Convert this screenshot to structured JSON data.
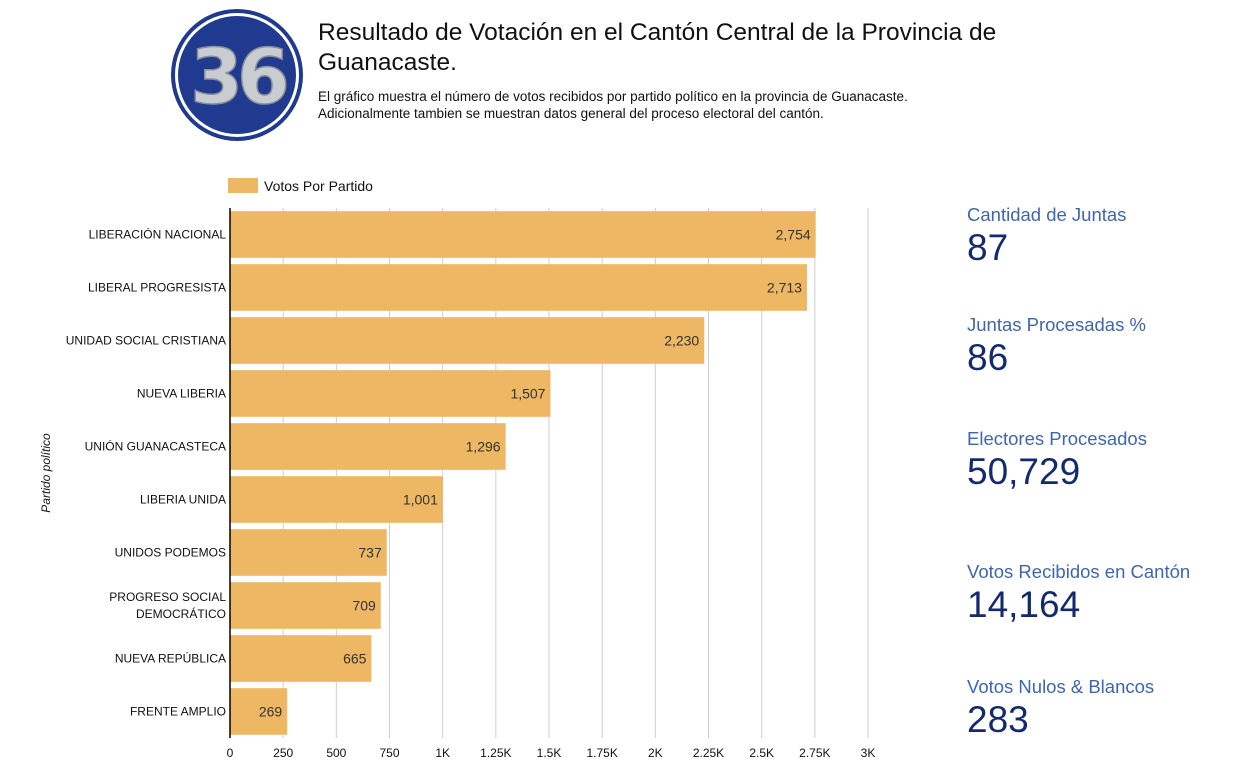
{
  "logo": {
    "text": "36",
    "colors": {
      "ring": "#ffffff",
      "disc": "#1f3a8f",
      "digits": "#c9cdd2"
    }
  },
  "header": {
    "title_line1": "Resultado de Votación en el Cantón Central de la Provincia de",
    "title_line2": "Guanacaste.",
    "subtitle_line1": "El gráfico muestra el número de votos recibidos por partido político en la provincia de Guanacaste.",
    "subtitle_line2": "Adicionalmente tambien se muestran datos general del proceso electoral del cantón."
  },
  "chart_data": {
    "type": "bar",
    "orientation": "horizontal",
    "ylabel": "Partido político",
    "categories": [
      [
        "LIBERACIÓN NACIONAL"
      ],
      [
        "LIBERAL PROGRESISTA"
      ],
      [
        "UNIDAD SOCIAL CRISTIANA"
      ],
      [
        "NUEVA LIBERIA"
      ],
      [
        "UNIÓN GUANACASTECA"
      ],
      [
        "LIBERIA UNIDA"
      ],
      [
        "UNIDOS PODEMOS"
      ],
      [
        "PROGRESO SOCIAL",
        "DEMOCRÁTICO"
      ],
      [
        "NUEVA REPÚBLICA"
      ],
      [
        "FRENTE AMPLIO"
      ]
    ],
    "series": [
      {
        "name": "Votos Por Partido",
        "color": "#eeb764",
        "values": [
          2754,
          2713,
          2230,
          1507,
          1296,
          1001,
          737,
          709,
          665,
          269
        ],
        "value_labels": [
          "2,754",
          "2,713",
          "2,230",
          "1,507",
          "1,296",
          "1,001",
          "737",
          "709",
          "665",
          "269"
        ]
      }
    ],
    "xlim": [
      0,
      3000
    ],
    "xticks": [
      0,
      250,
      500,
      750,
      1000,
      1250,
      1500,
      1750,
      2000,
      2250,
      2500,
      2750,
      3000
    ],
    "xtick_labels": [
      "0",
      "250",
      "500",
      "750",
      "1K",
      "1.25K",
      "1.5K",
      "1.75K",
      "2K",
      "2.25K",
      "2.5K",
      "2.75K",
      "3K"
    ],
    "grid": "vertical",
    "legend_position": "top-left"
  },
  "stats": {
    "juntas": {
      "label": "Cantidad de Juntas",
      "value": "87"
    },
    "procesadas": {
      "label": "Juntas Procesadas %",
      "value": "86"
    },
    "electores": {
      "label": "Electores Procesados",
      "value": "50,729"
    },
    "recibidos": {
      "label": "Votos Recibidos en Cantón",
      "value": "14,164"
    },
    "nulos": {
      "label": "Votos Nulos & Blancos",
      "value": "283"
    }
  }
}
